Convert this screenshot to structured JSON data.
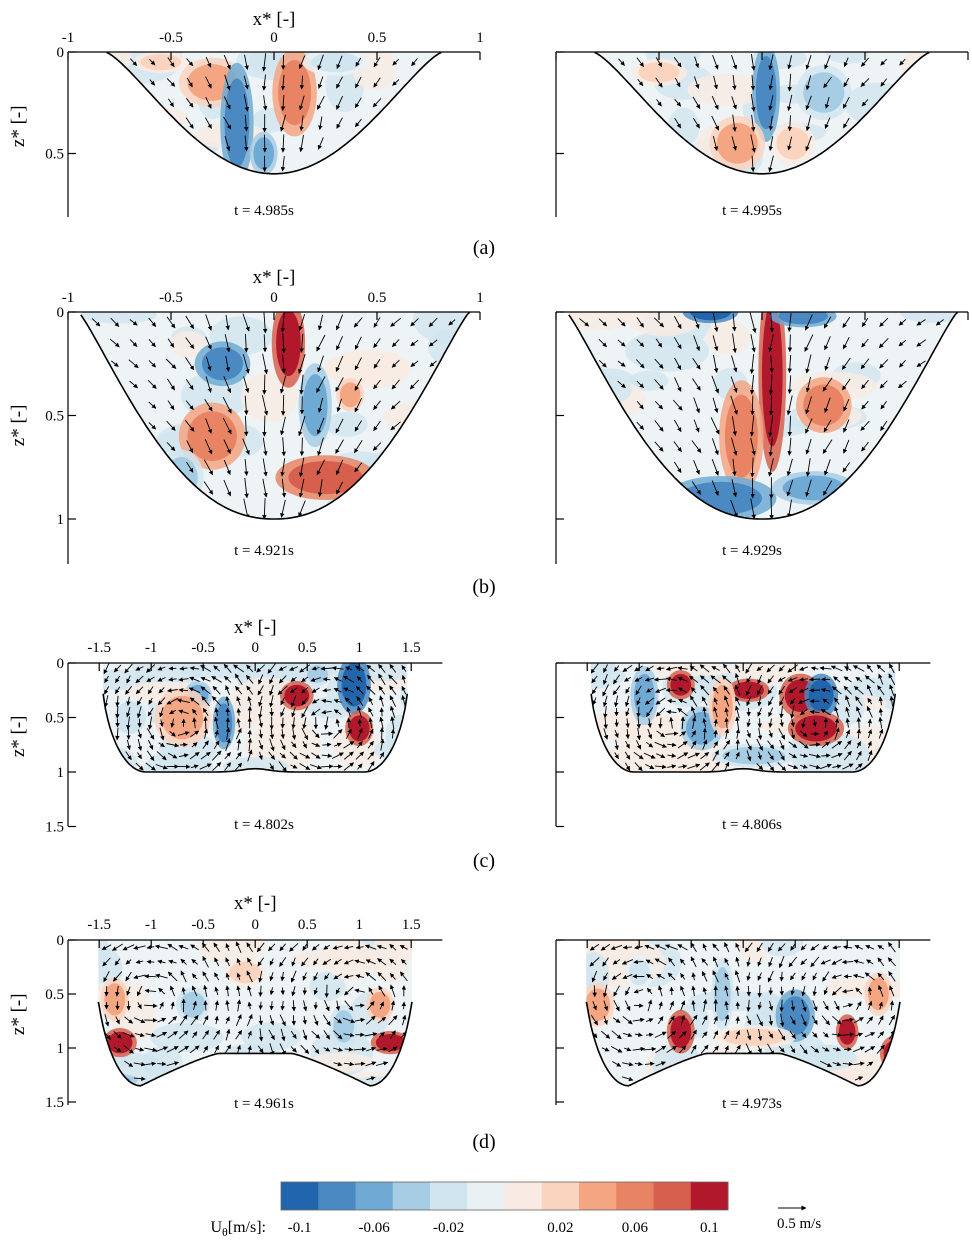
{
  "figure": {
    "x_axis_label": "x* [-]",
    "z_axis_label": "z* [-]",
    "rows": [
      {
        "label": "(a)",
        "x_ticks": [
          "-1",
          "-0.5",
          "0",
          "0.5",
          "1"
        ],
        "z_ticks": [
          "0",
          "0.5"
        ],
        "panels": [
          {
            "time": "t = 4.985s"
          },
          {
            "time": "t = 4.995s"
          }
        ]
      },
      {
        "label": "(b)",
        "x_ticks": [
          "-1",
          "-0.5",
          "0",
          "0.5",
          "1"
        ],
        "z_ticks": [
          "0",
          "0.5",
          "1"
        ],
        "panels": [
          {
            "time": "t = 4.921s"
          },
          {
            "time": "t = 4.929s"
          }
        ]
      },
      {
        "label": "(c)",
        "x_ticks": [
          "-1.5",
          "-1",
          "-0.5",
          "0",
          "0.5",
          "1",
          "1.5"
        ],
        "z_ticks": [
          "0",
          "0.5",
          "1",
          "1.5"
        ],
        "panels": [
          {
            "time": "t = 4.802s"
          },
          {
            "time": "t = 4.806s"
          }
        ]
      },
      {
        "label": "(d)",
        "x_ticks": [
          "-1.5",
          "-1",
          "-0.5",
          "0",
          "0.5",
          "1",
          "1.5"
        ],
        "z_ticks": [
          "0",
          "0.5",
          "1",
          "1.5"
        ],
        "panels": [
          {
            "time": "t = 4.961s"
          },
          {
            "time": "t = 4.973s"
          }
        ]
      }
    ],
    "colorbar": {
      "label_main": "U",
      "label_sub": "θ",
      "label_unit": "[m/s]:",
      "tick_labels": [
        "-0.1",
        "-0.06",
        "-0.02",
        "0.02",
        "0.06",
        "0.1"
      ],
      "colors": [
        "#2166ac",
        "#4a89c2",
        "#6eaad4",
        "#a7cde4",
        "#d1e5f0",
        "#eaf1f4",
        "#f9ebe4",
        "#fbd4c0",
        "#f4a582",
        "#e88464",
        "#d6604d",
        "#b2182b"
      ]
    },
    "reference_vector": {
      "label": "0.5 m/s"
    }
  }
}
